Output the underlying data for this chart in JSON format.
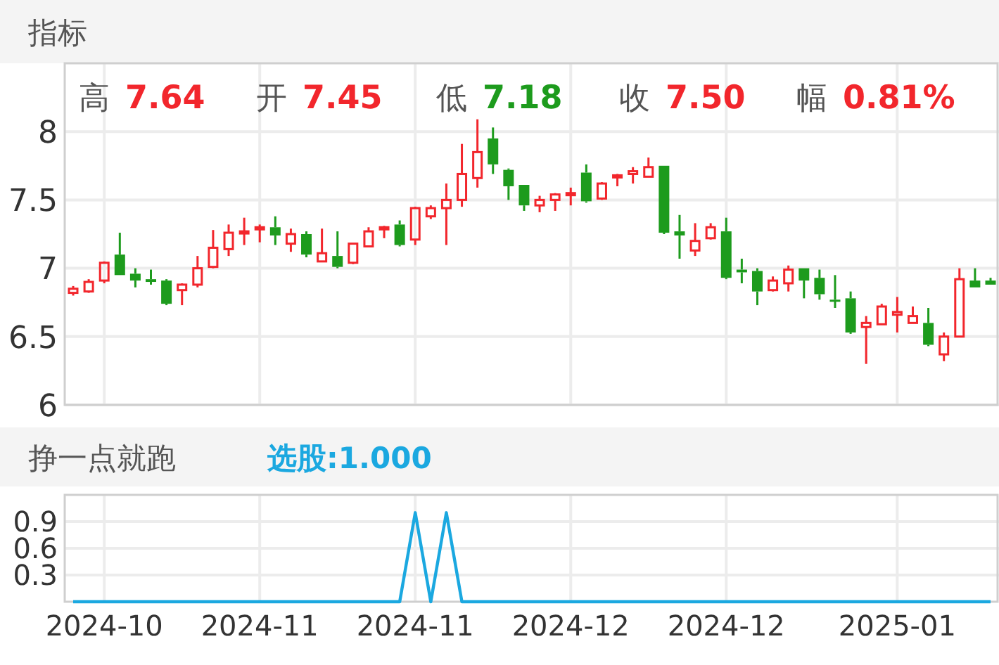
{
  "chart_data": [
    {
      "type": "candlestick",
      "title": "指标",
      "annotations": [
        "高",
        "7.64",
        "开",
        "7.45",
        "低",
        "7.18",
        "收",
        "7.50",
        "幅",
        "0.81%"
      ],
      "categories": [
        null,
        null,
        "2024-10",
        null,
        null,
        null,
        null,
        null,
        null,
        null,
        null,
        null,
        "2024-11",
        null,
        null,
        null,
        null,
        null,
        null,
        null,
        null,
        null,
        "2024-11",
        null,
        null,
        null,
        null,
        null,
        null,
        null,
        null,
        null,
        "2024-12",
        null,
        null,
        null,
        null,
        null,
        null,
        null,
        null,
        null,
        "2024-12",
        null,
        null,
        null,
        null,
        null,
        null,
        null,
        null,
        null,
        null,
        "2025-01",
        null,
        null,
        null,
        null,
        null,
        null
      ],
      "ohlc": [
        [
          6.82,
          6.87,
          6.8,
          6.85
        ],
        [
          6.83,
          6.92,
          6.82,
          6.9
        ],
        [
          6.91,
          7.05,
          6.89,
          7.04
        ],
        [
          7.1,
          7.26,
          6.95,
          6.95
        ],
        [
          6.96,
          7.0,
          6.86,
          6.91
        ],
        [
          6.92,
          6.99,
          6.88,
          6.9
        ],
        [
          6.91,
          6.92,
          6.73,
          6.74
        ],
        [
          6.84,
          6.89,
          6.73,
          6.88
        ],
        [
          6.88,
          7.09,
          6.86,
          7.0
        ],
        [
          7.01,
          7.28,
          7.0,
          7.15
        ],
        [
          7.14,
          7.32,
          7.09,
          7.26
        ],
        [
          7.26,
          7.37,
          7.17,
          7.27
        ],
        [
          7.29,
          7.32,
          7.19,
          7.3
        ],
        [
          7.3,
          7.38,
          7.17,
          7.24
        ],
        [
          7.18,
          7.29,
          7.12,
          7.25
        ],
        [
          7.25,
          7.27,
          7.08,
          7.1
        ],
        [
          7.05,
          7.29,
          7.05,
          7.11
        ],
        [
          7.09,
          7.27,
          7.0,
          7.01
        ],
        [
          7.04,
          7.18,
          7.03,
          7.18
        ],
        [
          7.16,
          7.3,
          7.16,
          7.27
        ],
        [
          7.29,
          7.31,
          7.22,
          7.3
        ],
        [
          7.32,
          7.35,
          7.16,
          7.17
        ],
        [
          7.21,
          7.45,
          7.17,
          7.44
        ],
        [
          7.38,
          7.46,
          7.36,
          7.44
        ],
        [
          7.44,
          7.62,
          7.17,
          7.5
        ],
        [
          7.5,
          7.91,
          7.45,
          7.69
        ],
        [
          7.66,
          8.09,
          7.59,
          7.85
        ],
        [
          7.95,
          8.03,
          7.69,
          7.76
        ],
        [
          7.72,
          7.73,
          7.5,
          7.6
        ],
        [
          7.61,
          7.61,
          7.42,
          7.46
        ],
        [
          7.46,
          7.53,
          7.41,
          7.5
        ],
        [
          7.5,
          7.55,
          7.42,
          7.54
        ],
        [
          7.54,
          7.59,
          7.46,
          7.55
        ],
        [
          7.7,
          7.76,
          7.48,
          7.49
        ],
        [
          7.51,
          7.63,
          7.5,
          7.62
        ],
        [
          7.67,
          7.69,
          7.6,
          7.68
        ],
        [
          7.69,
          7.74,
          7.62,
          7.71
        ],
        [
          7.67,
          7.81,
          7.67,
          7.74
        ],
        [
          7.75,
          7.75,
          7.25,
          7.26
        ],
        [
          7.27,
          7.39,
          7.07,
          7.24
        ],
        [
          7.13,
          7.33,
          7.09,
          7.2
        ],
        [
          7.22,
          7.33,
          7.21,
          7.3
        ],
        [
          7.27,
          7.37,
          6.92,
          6.93
        ],
        [
          6.99,
          7.07,
          6.89,
          6.97
        ],
        [
          6.98,
          7.0,
          6.73,
          6.83
        ],
        [
          6.84,
          6.94,
          6.83,
          6.91
        ],
        [
          6.89,
          7.02,
          6.83,
          6.99
        ],
        [
          7.0,
          7.0,
          6.78,
          6.91
        ],
        [
          6.93,
          6.99,
          6.77,
          6.81
        ],
        [
          6.77,
          6.95,
          6.71,
          6.76
        ],
        [
          6.78,
          6.83,
          6.52,
          6.53
        ],
        [
          6.57,
          6.65,
          6.3,
          6.6
        ],
        [
          6.59,
          6.74,
          6.59,
          6.72
        ],
        [
          6.66,
          6.79,
          6.53,
          6.68
        ],
        [
          6.6,
          6.72,
          6.6,
          6.65
        ],
        [
          6.6,
          6.71,
          6.43,
          6.44
        ],
        [
          6.37,
          6.53,
          6.32,
          6.5
        ],
        [
          6.5,
          7.0,
          6.5,
          6.92
        ],
        [
          6.91,
          7.0,
          6.86,
          6.86
        ],
        [
          6.91,
          6.93,
          6.88,
          6.88
        ]
      ],
      "ylim": [
        6,
        8.5
      ],
      "yticks": [
        6,
        6.5,
        7,
        7.5,
        8
      ],
      "grid": true,
      "tick_labels": "y"
    },
    {
      "type": "line",
      "title": "挣一点就跑",
      "categories": [
        null,
        null,
        "2024-10",
        null,
        null,
        null,
        null,
        null,
        null,
        null,
        null,
        null,
        "2024-11",
        null,
        null,
        null,
        null,
        null,
        null,
        null,
        null,
        null,
        "2024-11",
        null,
        null,
        null,
        null,
        null,
        null,
        null,
        null,
        null,
        "2024-12",
        null,
        null,
        null,
        null,
        null,
        null,
        null,
        null,
        null,
        "2024-12",
        null,
        null,
        null,
        null,
        null,
        null,
        null,
        null,
        null,
        null,
        "2025-01",
        null,
        null,
        null,
        null,
        null,
        null
      ],
      "series": [
        {
          "name": "选股:1.000",
          "color": "#1ba8e0",
          "values": [
            0,
            0,
            0,
            0,
            0,
            0,
            0,
            0,
            0,
            0,
            0,
            0,
            0,
            0,
            0,
            0,
            0,
            0,
            0,
            0,
            0,
            0,
            1,
            0,
            1,
            0,
            0,
            0,
            0,
            0,
            0,
            0,
            0,
            0,
            0,
            0,
            0,
            0,
            0,
            0,
            0,
            0,
            0,
            0,
            0,
            0,
            0,
            0,
            0,
            0,
            0,
            0,
            0,
            0,
            0,
            0,
            0,
            0,
            0,
            0
          ]
        }
      ],
      "ylim": [
        0,
        1.2
      ],
      "yticks": [
        0.3,
        0.6,
        0.9
      ],
      "grid": true,
      "legend": "top left"
    }
  ]
}
